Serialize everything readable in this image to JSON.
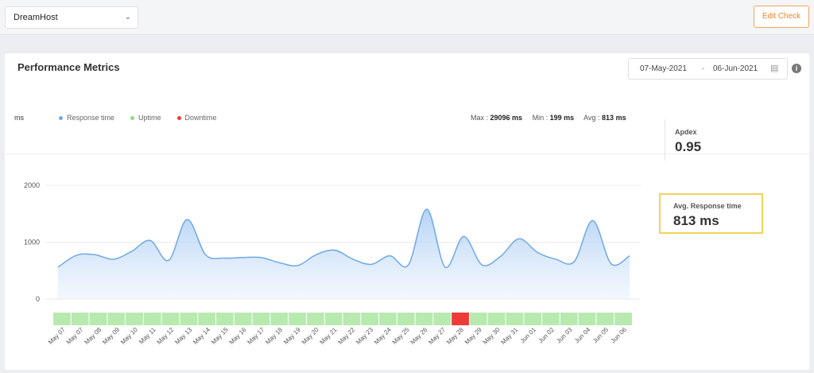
{
  "header": {
    "monitor_select": "DreamHost",
    "edit_check_label": "Edit Check"
  },
  "card": {
    "title": "Performance Metrics",
    "date_from": "07-May-2021",
    "date_sep": "-",
    "date_to": "06-Jun-2021"
  },
  "legend": {
    "unit": "ms",
    "response_time": "Response time",
    "uptime": "Uptime",
    "downtime": "Downtime"
  },
  "stats": {
    "max_label": "Max :",
    "max_value": "29096 ms",
    "min_label": "Min :",
    "min_value": "199 ms",
    "avg_label": "Avg :",
    "avg_value": "813 ms"
  },
  "apdex": {
    "label": "Apdex",
    "value": "0.95"
  },
  "avg_response": {
    "label": "Avg. Response time",
    "value": "813 ms"
  },
  "colors": {
    "response": "#6fa8e6",
    "uptime": "#b8eab0",
    "downtime": "#ef3a3a",
    "highlight": "#f1d25b"
  },
  "chart_data": {
    "type": "area",
    "ylim": [
      0,
      2000
    ],
    "yticks": [
      "2000",
      "1000",
      "0"
    ],
    "ytick_values": [
      2000,
      1000,
      0
    ],
    "x": [
      "May 07",
      "May 07",
      "May 08",
      "May 09",
      "May 10",
      "May 11",
      "May 12",
      "May 13",
      "May 14",
      "May 15",
      "May 16",
      "May 17",
      "May 18",
      "May 19",
      "May 20",
      "May 21",
      "May 22",
      "May 23",
      "May 24",
      "May 25",
      "May 26",
      "May 27",
      "May 28",
      "May 29",
      "May 30",
      "May 31",
      "Jun 01",
      "Jun 02",
      "Jun 03",
      "Jun 04",
      "Jun 05",
      "Jun 06"
    ],
    "series": [
      {
        "values": [
          560,
          770,
          780,
          700,
          840,
          1030,
          680,
          1400,
          780,
          720,
          730,
          730,
          640,
          590,
          780,
          860,
          700,
          610,
          760,
          600,
          1580,
          560,
          1100,
          600,
          750,
          1060,
          820,
          700,
          660,
          1380,
          620,
          760
        ]
      }
    ],
    "status": [
      "up",
      "up",
      "up",
      "up",
      "up",
      "up",
      "up",
      "up",
      "up",
      "up",
      "up",
      "up",
      "up",
      "up",
      "up",
      "up",
      "up",
      "up",
      "up",
      "up",
      "up",
      "up",
      "down",
      "up",
      "up",
      "up",
      "up",
      "up",
      "up",
      "up",
      "up",
      "up"
    ]
  }
}
